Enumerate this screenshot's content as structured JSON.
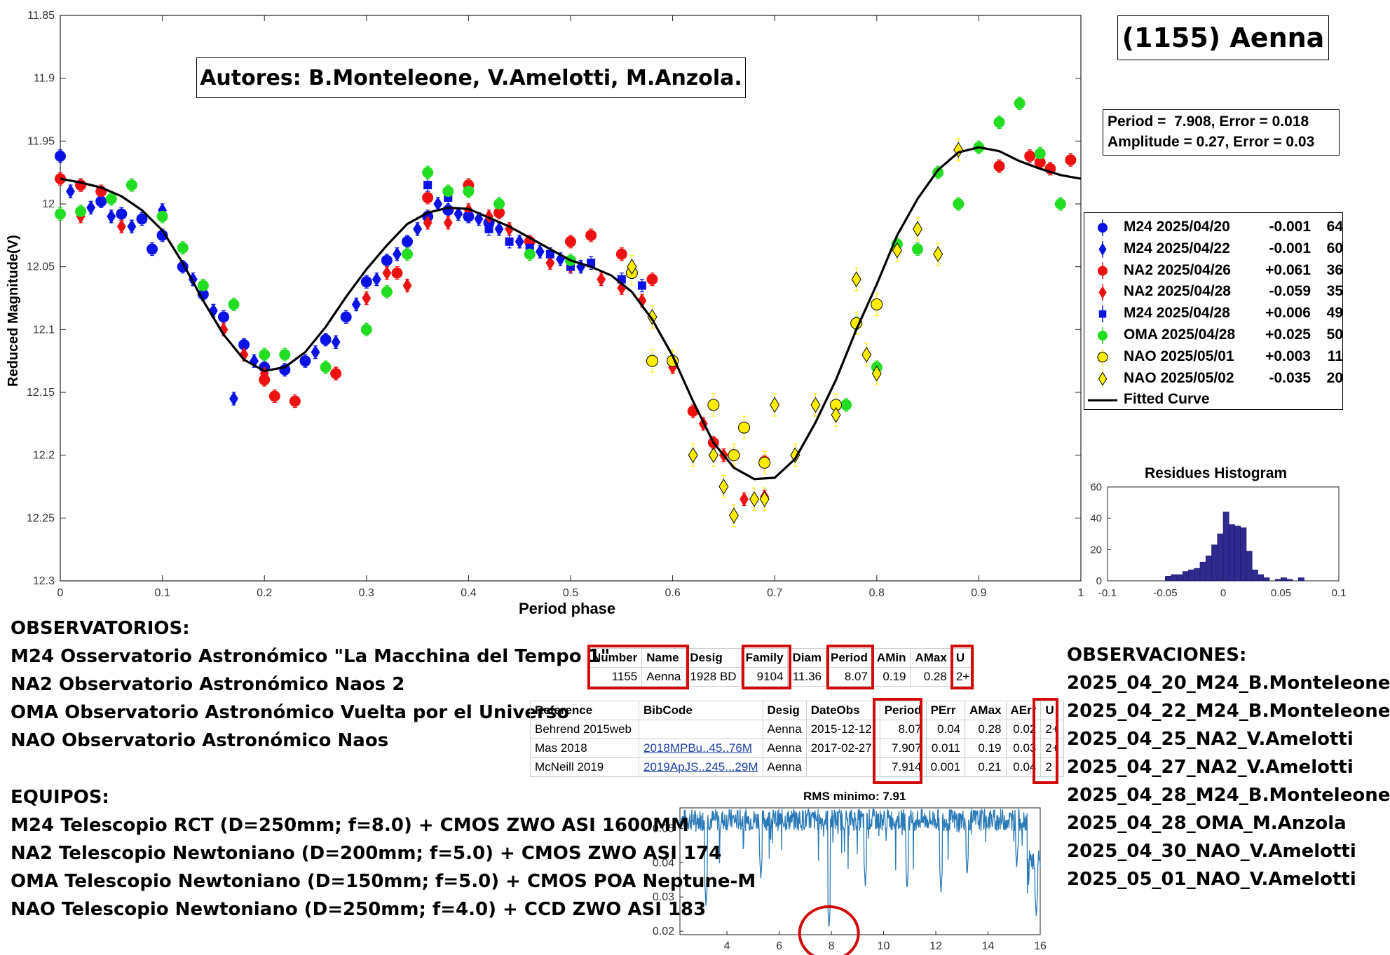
{
  "main_chart": {
    "title_box": "(1155) Aenna",
    "authors": "Autores: B.Monteleone, V.Amelotti, M.Anzola.",
    "stats_line1": "Period =  7.908, Error = 0.018",
    "stats_line2": "Amplitude = 0.27, Error = 0.03",
    "xlabel": "Period phase",
    "ylabel": "Reduced Magnitude(V)",
    "x_ticks": [
      "0",
      "0.1",
      "0.2",
      "0.3",
      "0.4",
      "0.5",
      "0.6",
      "0.7",
      "0.8",
      "0.9",
      "1"
    ],
    "y_ticks": [
      "11.85",
      "11.9",
      "11.95",
      "12",
      "12.05",
      "12.1",
      "12.15",
      "12.2",
      "12.25",
      "12.3"
    ],
    "legend": [
      {
        "marker": "circle",
        "color": "#0a12e6",
        "session": "M24 2025/04/20",
        "offset": "-0.001",
        "n": "64"
      },
      {
        "marker": "diamond",
        "color": "#0a12e6",
        "session": "M24 2025/04/22",
        "offset": "-0.001",
        "n": "60"
      },
      {
        "marker": "circle",
        "color": "#ee1111",
        "session": "NA2 2025/04/26",
        "offset": "+0.061",
        "n": "36"
      },
      {
        "marker": "diamond",
        "color": "#ee1111",
        "session": "NA2 2025/04/28",
        "offset": "-0.059",
        "n": "35"
      },
      {
        "marker": "square",
        "color": "#0a12e6",
        "session": "M24 2025/04/28",
        "offset": "+0.006",
        "n": "49"
      },
      {
        "marker": "circle",
        "color": "#22dd22",
        "session": "OMA 2025/04/28",
        "offset": "+0.025",
        "n": "50"
      },
      {
        "marker": "circle",
        "color": "#ffee00",
        "session": "NAO 2025/05/01",
        "offset": "+0.003",
        "n": "11"
      },
      {
        "marker": "diamond",
        "color": "#ffee00",
        "session": "NAO 2025/05/02",
        "offset": "-0.035",
        "n": "20"
      },
      {
        "marker": "line",
        "color": "#000000",
        "session": "Fitted Curve",
        "offset": "",
        "n": ""
      }
    ]
  },
  "chart_data": [
    {
      "type": "scatter",
      "title": "",
      "xlabel": "Period phase",
      "ylabel": "Reduced Magnitude(V)",
      "xlim": [
        0,
        1
      ],
      "ylim": [
        12.3,
        11.85
      ],
      "y_reversed": true,
      "grid": false,
      "legend_position": "right",
      "fitted_curve": {
        "name": "Fitted Curve",
        "x": [
          0,
          0.02,
          0.04,
          0.06,
          0.08,
          0.1,
          0.12,
          0.14,
          0.16,
          0.18,
          0.2,
          0.22,
          0.24,
          0.26,
          0.28,
          0.3,
          0.32,
          0.34,
          0.36,
          0.38,
          0.4,
          0.42,
          0.44,
          0.46,
          0.48,
          0.5,
          0.52,
          0.54,
          0.56,
          0.58,
          0.6,
          0.62,
          0.64,
          0.66,
          0.68,
          0.7,
          0.72,
          0.74,
          0.76,
          0.78,
          0.8,
          0.82,
          0.84,
          0.86,
          0.88,
          0.9,
          0.92,
          0.94,
          0.96,
          0.98,
          1.0
        ],
        "y": [
          11.98,
          11.983,
          11.987,
          11.994,
          12.005,
          12.021,
          12.047,
          12.077,
          12.104,
          12.124,
          12.133,
          12.13,
          12.118,
          12.098,
          12.074,
          12.052,
          12.033,
          12.016,
          12.007,
          12.003,
          12.004,
          12.011,
          12.018,
          12.027,
          12.036,
          12.045,
          12.05,
          12.057,
          12.07,
          12.092,
          12.121,
          12.157,
          12.19,
          12.21,
          12.219,
          12.218,
          12.203,
          12.174,
          12.14,
          12.1,
          12.064,
          12.025,
          11.996,
          11.973,
          11.959,
          11.955,
          11.958,
          11.966,
          11.972,
          11.977,
          11.98
        ]
      },
      "series": [
        {
          "name": "M24 2025/04/20",
          "x": [
            0.0,
            0.02,
            0.04,
            0.06,
            0.08,
            0.09,
            0.1,
            0.12,
            0.14,
            0.16,
            0.18,
            0.2,
            0.22,
            0.24,
            0.26,
            0.28,
            0.3,
            0.32,
            0.34,
            0.36,
            0.38,
            0.4,
            0.42
          ],
          "y": [
            11.962,
            11.985,
            11.998,
            12.008,
            12.012,
            12.036,
            12.025,
            12.05,
            12.072,
            12.09,
            12.112,
            12.13,
            12.132,
            12.125,
            12.108,
            12.09,
            12.062,
            12.045,
            12.03,
            12.01,
            12.005,
            12.01,
            12.015
          ]
        },
        {
          "name": "M24 2025/04/22",
          "x": [
            0.01,
            0.03,
            0.05,
            0.07,
            0.1,
            0.13,
            0.15,
            0.17,
            0.19,
            0.25,
            0.27,
            0.29,
            0.31,
            0.33,
            0.35,
            0.37,
            0.39,
            0.41,
            0.43,
            0.45,
            0.47,
            0.49,
            0.51
          ],
          "y": [
            11.99,
            12.003,
            12.01,
            12.018,
            12.005,
            12.06,
            12.085,
            12.155,
            12.125,
            12.118,
            12.11,
            12.08,
            12.06,
            12.04,
            12.02,
            12.0,
            12.008,
            12.012,
            12.02,
            12.03,
            12.038,
            12.044,
            12.05
          ]
        },
        {
          "name": "NA2 2025/04/26",
          "x": [
            0.0,
            0.02,
            0.04,
            0.2,
            0.21,
            0.23,
            0.27,
            0.33,
            0.36,
            0.4,
            0.43,
            0.46,
            0.5,
            0.52,
            0.55,
            0.58,
            0.62,
            0.64,
            0.69,
            0.92,
            0.95,
            0.96,
            0.97,
            0.99
          ],
          "y": [
            11.98,
            11.985,
            11.99,
            12.14,
            12.153,
            12.157,
            12.135,
            12.055,
            11.995,
            11.985,
            12.007,
            12.03,
            12.03,
            12.025,
            12.04,
            12.06,
            12.165,
            12.19,
            12.205,
            11.97,
            11.962,
            11.967,
            11.972,
            11.965
          ]
        },
        {
          "name": "NA2 2025/04/28",
          "x": [
            0.02,
            0.06,
            0.16,
            0.18,
            0.2,
            0.27,
            0.3,
            0.32,
            0.34,
            0.36,
            0.38,
            0.4,
            0.42,
            0.44,
            0.46,
            0.48,
            0.5,
            0.53,
            0.55,
            0.57,
            0.6,
            0.63,
            0.65,
            0.67,
            0.69
          ],
          "y": [
            12.01,
            12.018,
            12.1,
            12.12,
            12.135,
            12.135,
            12.075,
            12.055,
            12.065,
            12.015,
            12.015,
            12.005,
            12.01,
            12.02,
            12.035,
            12.047,
            12.05,
            12.06,
            12.067,
            12.077,
            12.13,
            12.175,
            12.2,
            12.235,
            12.233
          ]
        },
        {
          "name": "M24 2025/04/28",
          "x": [
            0.36,
            0.38,
            0.4,
            0.42,
            0.44,
            0.46,
            0.48,
            0.5,
            0.52,
            0.55,
            0.57
          ],
          "y": [
            11.985,
            11.995,
            12.01,
            12.02,
            12.03,
            12.035,
            12.04,
            12.05,
            12.047,
            12.06,
            12.065
          ]
        },
        {
          "name": "OMA 2025/04/28",
          "x": [
            0.0,
            0.02,
            0.05,
            0.07,
            0.1,
            0.12,
            0.14,
            0.17,
            0.2,
            0.22,
            0.26,
            0.3,
            0.32,
            0.34,
            0.36,
            0.38,
            0.4,
            0.43,
            0.46,
            0.5,
            0.77,
            0.78,
            0.8,
            0.82,
            0.84,
            0.86,
            0.88,
            0.9,
            0.92,
            0.94,
            0.96,
            0.98
          ],
          "y": [
            12.008,
            12.006,
            11.996,
            11.985,
            12.01,
            12.035,
            12.065,
            12.08,
            12.12,
            12.12,
            12.13,
            12.1,
            12.07,
            12.04,
            11.975,
            11.99,
            11.99,
            12.0,
            12.04,
            12.045,
            12.16,
            12.095,
            12.13,
            12.032,
            12.036,
            11.975,
            12.0,
            11.955,
            11.935,
            11.92,
            11.96,
            12.0
          ]
        },
        {
          "name": "NAO 2025/05/01",
          "x": [
            0.56,
            0.58,
            0.6,
            0.64,
            0.66,
            0.67,
            0.69,
            0.76,
            0.78,
            0.8
          ],
          "y": [
            12.055,
            12.125,
            12.125,
            12.16,
            12.2,
            12.178,
            12.206,
            12.16,
            12.095,
            12.08
          ]
        },
        {
          "name": "NAO 2025/05/02",
          "x": [
            0.56,
            0.58,
            0.62,
            0.64,
            0.65,
            0.66,
            0.68,
            0.69,
            0.7,
            0.72,
            0.74,
            0.76,
            0.78,
            0.79,
            0.8,
            0.82,
            0.84,
            0.86,
            0.88
          ],
          "y": [
            12.05,
            12.09,
            12.2,
            12.2,
            12.225,
            12.248,
            12.235,
            12.235,
            12.16,
            12.2,
            12.16,
            12.168,
            12.06,
            12.12,
            12.135,
            12.037,
            12.02,
            12.04,
            11.957
          ]
        }
      ]
    },
    {
      "type": "bar",
      "title": "Residues Histogram",
      "xlim": [
        -0.1,
        0.1
      ],
      "ylim": [
        0,
        60
      ],
      "x_ticks": [
        "-0.1",
        "-0.05",
        "0",
        "0.05",
        "0.1"
      ],
      "y_ticks": [
        "0",
        "20",
        "40",
        "60"
      ],
      "bin_width": 0.005,
      "bin_centers": [
        -0.0475,
        -0.0425,
        -0.0375,
        -0.0325,
        -0.0275,
        -0.0225,
        -0.0175,
        -0.0125,
        -0.0075,
        -0.0025,
        0.0025,
        0.0075,
        0.0125,
        0.0175,
        0.0225,
        0.0275,
        0.0325,
        0.0375,
        0.0425,
        0.0475,
        0.0525,
        0.0575,
        0.0625,
        0.0675
      ],
      "values": [
        3,
        4,
        4,
        6,
        7,
        8,
        12,
        16,
        23,
        30,
        44,
        36,
        35,
        34,
        19,
        7,
        4,
        2,
        0,
        1,
        2,
        1,
        0,
        2
      ]
    },
    {
      "type": "line",
      "title": "RMS minimo: 7.91",
      "xlim": [
        2.2,
        16
      ],
      "ylim": [
        0.019,
        0.056
      ],
      "x_ticks": [
        "4",
        "6",
        "8",
        "10",
        "12",
        "14",
        "16"
      ],
      "y_ticks": [
        "0.02",
        "0.03",
        "0.04",
        "0.05"
      ],
      "minimum_x": 7.91,
      "minimum_y": 0.0205
    }
  ],
  "lcdb": {
    "summary_headers": [
      "Number",
      "Name",
      "Desig",
      "Family",
      "Diam",
      "Period",
      "AMin",
      "AMax",
      "U"
    ],
    "summary_row": [
      "1155",
      "Aenna",
      "1928 BD",
      "9104",
      "11.36",
      "8.07",
      "0.19",
      "0.28",
      "2+"
    ],
    "ref_headers": [
      "Reference",
      "BibCode",
      "Desig",
      "DateObs",
      "Period",
      "PErr",
      "AMax",
      "AErr",
      "U"
    ],
    "ref_rows": [
      [
        "Behrend 2015web",
        "",
        "Aenna",
        "2015-12-12",
        "8.07",
        "0.04",
        "0.28",
        "0.02",
        "2+"
      ],
      [
        "Mas 2018",
        "2018MPBu..45..76M",
        "Aenna",
        "2017-02-27",
        "7.907",
        "0.011",
        "0.19",
        "0.03",
        "2+"
      ],
      [
        "McNeill 2019",
        "2019ApJS..245...29M",
        "Aenna",
        "",
        "7.914",
        "0.001",
        "0.21",
        "0.04",
        "2"
      ]
    ]
  },
  "observatorios": {
    "heading": "OBSERVATORIOS:",
    "lines": [
      "M24 Osservatorio Astronómico \"La Macchina del Tempo 1\"",
      "NA2 Observatorio Astronómico Naos 2",
      "OMA Observatorio Astronómico Vuelta por el Universo",
      "NAO Observatorio Astronómico Naos"
    ]
  },
  "equipos": {
    "heading": "EQUIPOS:",
    "lines": [
      "M24 Telescopio RCT (D=250mm; f=8.0) + CMOS ZWO ASI 1600MM",
      "NA2 Telescopio Newtoniano (D=200mm; f=5.0) + CMOS ZWO ASI 174",
      "OMA Telescopio Newtoniano (D=150mm; f=5.0) + CMOS POA Neptune-M",
      "NAO Telescopio Newtoniano (D=250mm; f=4.0) + CCD ZWO ASI 183"
    ]
  },
  "observaciones": {
    "heading": "OBSERVACIONES:",
    "lines": [
      "2025_04_20_M24_B.Monteleone",
      "2025_04_22_M24_B.Monteleone",
      "2025_04_25_NA2_V.Amelotti",
      "2025_04_27_NA2_V.Amelotti",
      "2025_04_28_M24_B.Monteleone",
      "2025_04_28_OMA_M.Anzola",
      "2025_04_30_NAO_V.Amelotti",
      "2025_05_01_NAO_V.Amelotti"
    ]
  },
  "colors": {
    "blue": "#0a12e6",
    "red": "#ee1111",
    "green": "#22dd22",
    "yellow": "#ffee00",
    "hist_fill": "#2e2a8f",
    "periodogram": "#2a7ab8",
    "highlight": "#d10a0a"
  }
}
